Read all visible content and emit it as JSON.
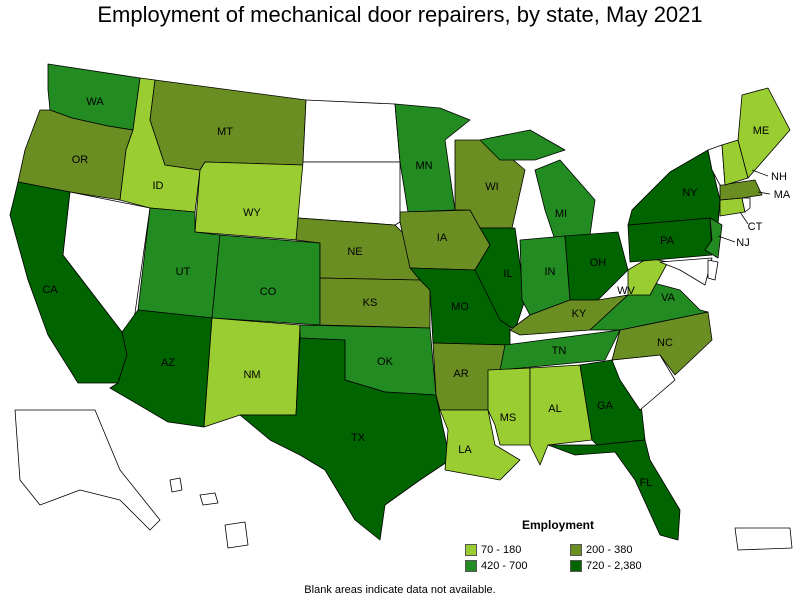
{
  "title": "Employment of mechanical door repairers, by state, May 2021",
  "legend": {
    "title": "Employment",
    "bins": [
      {
        "label": "70 - 180",
        "color": "#9acd32"
      },
      {
        "label": "200 - 380",
        "color": "#6b8e23"
      },
      {
        "label": "420 - 700",
        "color": "#228b22"
      },
      {
        "label": "720 - 2,380",
        "color": "#006400"
      }
    ]
  },
  "no_data_color": "#ffffff",
  "footnote": "Blank areas indicate data not available.",
  "states": [
    {
      "abbr": "WA",
      "bin": 2
    },
    {
      "abbr": "OR",
      "bin": 1
    },
    {
      "abbr": "CA",
      "bin": 3
    },
    {
      "abbr": "NV",
      "bin": null
    },
    {
      "abbr": "ID",
      "bin": 0
    },
    {
      "abbr": "MT",
      "bin": 1
    },
    {
      "abbr": "WY",
      "bin": 0
    },
    {
      "abbr": "UT",
      "bin": 2
    },
    {
      "abbr": "CO",
      "bin": 2
    },
    {
      "abbr": "AZ",
      "bin": 3
    },
    {
      "abbr": "NM",
      "bin": 0
    },
    {
      "abbr": "ND",
      "bin": null
    },
    {
      "abbr": "SD",
      "bin": null
    },
    {
      "abbr": "NE",
      "bin": 1
    },
    {
      "abbr": "KS",
      "bin": 1
    },
    {
      "abbr": "OK",
      "bin": 2
    },
    {
      "abbr": "TX",
      "bin": 3
    },
    {
      "abbr": "MN",
      "bin": 2
    },
    {
      "abbr": "IA",
      "bin": 1
    },
    {
      "abbr": "MO",
      "bin": 3
    },
    {
      "abbr": "AR",
      "bin": 1
    },
    {
      "abbr": "LA",
      "bin": 0
    },
    {
      "abbr": "WI",
      "bin": 1
    },
    {
      "abbr": "IL",
      "bin": 3
    },
    {
      "abbr": "MI",
      "bin": 2
    },
    {
      "abbr": "IN",
      "bin": 2
    },
    {
      "abbr": "OH",
      "bin": 3
    },
    {
      "abbr": "KY",
      "bin": 1
    },
    {
      "abbr": "TN",
      "bin": 2
    },
    {
      "abbr": "MS",
      "bin": 0
    },
    {
      "abbr": "AL",
      "bin": 0
    },
    {
      "abbr": "GA",
      "bin": 3
    },
    {
      "abbr": "FL",
      "bin": 3
    },
    {
      "abbr": "SC",
      "bin": null
    },
    {
      "abbr": "NC",
      "bin": 1
    },
    {
      "abbr": "VA",
      "bin": 2
    },
    {
      "abbr": "WV",
      "bin": 0
    },
    {
      "abbr": "PA",
      "bin": 3
    },
    {
      "abbr": "NY",
      "bin": 3
    },
    {
      "abbr": "NJ",
      "bin": 2
    },
    {
      "abbr": "MD",
      "bin": null
    },
    {
      "abbr": "DE",
      "bin": null
    },
    {
      "abbr": "CT",
      "bin": 0
    },
    {
      "abbr": "RI",
      "bin": null
    },
    {
      "abbr": "MA",
      "bin": 1
    },
    {
      "abbr": "VT",
      "bin": null
    },
    {
      "abbr": "NH",
      "bin": 0
    },
    {
      "abbr": "ME",
      "bin": 0
    },
    {
      "abbr": "AK",
      "bin": null
    },
    {
      "abbr": "HI",
      "bin": null
    },
    {
      "abbr": "PR",
      "bin": null
    }
  ]
}
